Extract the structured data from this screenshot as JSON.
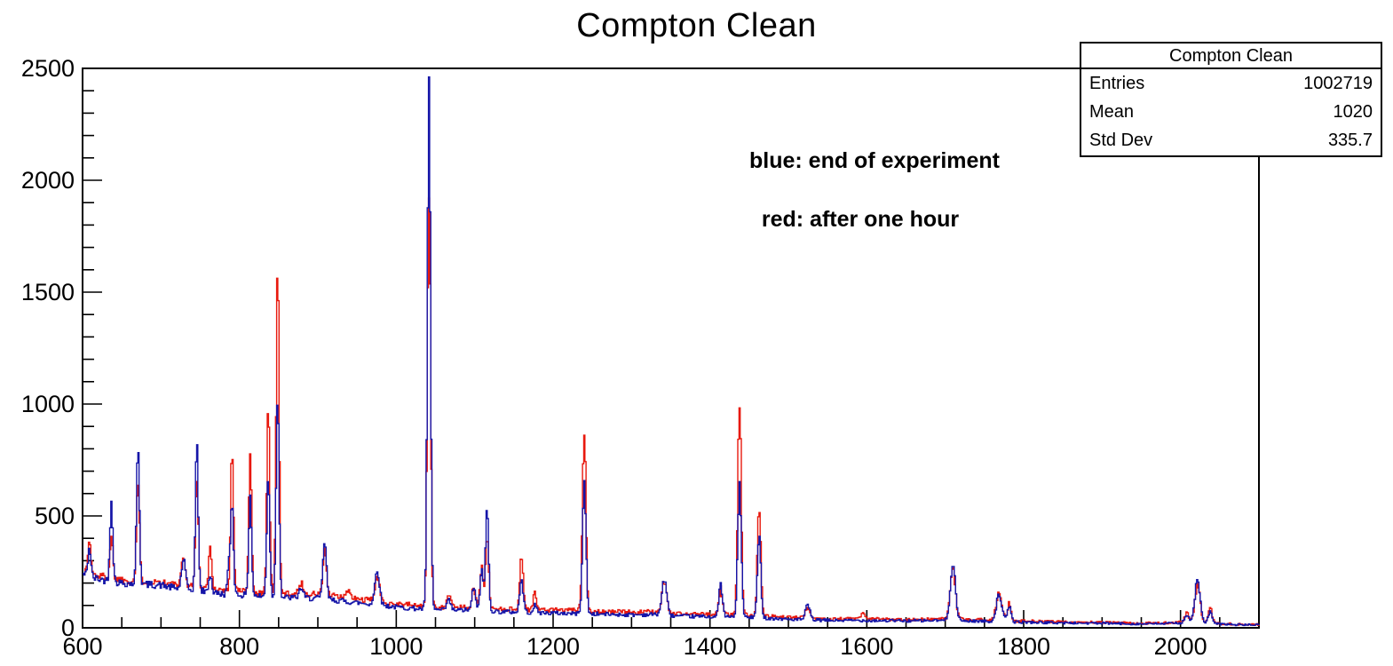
{
  "title": "Compton Clean",
  "annotations": {
    "blue": "blue: end of experiment",
    "red": "red: after one hour"
  },
  "stats_box": {
    "title": "Compton Clean",
    "rows": [
      {
        "label": "Entries",
        "value": "1002719"
      },
      {
        "label": "Mean",
        "value": "1020"
      },
      {
        "label": "Std Dev",
        "value": "335.7"
      }
    ]
  },
  "chart_data": {
    "type": "line",
    "title": "Compton Clean",
    "xlabel": "",
    "ylabel": "",
    "xlim": [
      600,
      2100
    ],
    "ylim": [
      0,
      2500
    ],
    "grid": false,
    "x_major_ticks": [
      600,
      800,
      1000,
      1200,
      1400,
      1600,
      1800,
      2000
    ],
    "x_tick_labels": [
      "600",
      "800",
      "1000",
      "1200",
      "1400",
      "1600",
      "1800",
      "2000"
    ],
    "x_minor_step": 50,
    "y_major_ticks": [
      0,
      500,
      1000,
      1500,
      2000,
      2500
    ],
    "y_tick_labels": [
      "0",
      "500",
      "1000",
      "1500",
      "2000",
      "2500"
    ],
    "y_minor_step": 100,
    "legend_note": "labels given as in-plot text: blue = end of experiment, red = after one hour",
    "bin_width": 1.5,
    "series": [
      {
        "name": "after one hour",
        "color": "#e8190e",
        "seed": 1337,
        "baseline": [
          [
            600,
            255
          ],
          [
            610,
            240
          ],
          [
            625,
            230
          ],
          [
            650,
            215
          ],
          [
            675,
            210
          ],
          [
            700,
            205
          ],
          [
            720,
            190
          ],
          [
            750,
            182
          ],
          [
            780,
            168
          ],
          [
            800,
            165
          ],
          [
            830,
            155
          ],
          [
            860,
            152
          ],
          [
            900,
            150
          ],
          [
            950,
            128
          ],
          [
            985,
            115
          ],
          [
            1000,
            108
          ],
          [
            1030,
            98
          ],
          [
            1060,
            92
          ],
          [
            1100,
            95
          ],
          [
            1130,
            85
          ],
          [
            1160,
            82
          ],
          [
            1200,
            80
          ],
          [
            1250,
            75
          ],
          [
            1300,
            70
          ],
          [
            1330,
            72
          ],
          [
            1360,
            63
          ],
          [
            1400,
            60
          ],
          [
            1440,
            58
          ],
          [
            1470,
            53
          ],
          [
            1500,
            46
          ],
          [
            1550,
            40
          ],
          [
            1600,
            40
          ],
          [
            1650,
            37
          ],
          [
            1700,
            39
          ],
          [
            1740,
            36
          ],
          [
            1790,
            31
          ],
          [
            1850,
            26
          ],
          [
            1900,
            24
          ],
          [
            1950,
            20
          ],
          [
            1990,
            23
          ],
          [
            2010,
            28
          ],
          [
            2040,
            21
          ],
          [
            2070,
            16
          ],
          [
            2100,
            15
          ]
        ],
        "peaks": [
          [
            608,
            150,
            1.8
          ],
          [
            636,
            190,
            1.8
          ],
          [
            670,
            445,
            1.8
          ],
          [
            728,
            120,
            2.5
          ],
          [
            745,
            490,
            1.8
          ],
          [
            762,
            190,
            1.8
          ],
          [
            790,
            635,
            1.8
          ],
          [
            813,
            630,
            1.8
          ],
          [
            836,
            855,
            1.8
          ],
          [
            848,
            1500,
            1.8
          ],
          [
            878,
            50,
            2.5
          ],
          [
            908,
            205,
            2.2
          ],
          [
            938,
            40,
            2
          ],
          [
            975,
            110,
            2.8
          ],
          [
            1041,
            1850,
            2.0
          ],
          [
            1066,
            55,
            2.5
          ],
          [
            1098,
            85,
            2
          ],
          [
            1108,
            175,
            2
          ],
          [
            1115,
            325,
            2
          ],
          [
            1159,
            240,
            2.2
          ],
          [
            1176,
            70,
            2.2
          ],
          [
            1239,
            810,
            2.2
          ],
          [
            1341,
            140,
            3
          ],
          [
            1413,
            115,
            2.2
          ],
          [
            1437,
            960,
            2.2
          ],
          [
            1462,
            500,
            2.2
          ],
          [
            1524,
            55,
            2.8
          ],
          [
            1594,
            25,
            2
          ],
          [
            1709,
            225,
            3.2
          ],
          [
            1768,
            130,
            3.5
          ],
          [
            1781,
            80,
            2.2
          ],
          [
            2007,
            38,
            2.5
          ],
          [
            2021,
            165,
            3.2
          ],
          [
            2037,
            72,
            2.5
          ]
        ]
      },
      {
        "name": "end of experiment",
        "color": "#1515a8",
        "seed": 42,
        "baseline": [
          [
            600,
            240
          ],
          [
            610,
            225
          ],
          [
            625,
            215
          ],
          [
            650,
            200
          ],
          [
            675,
            195
          ],
          [
            700,
            190
          ],
          [
            720,
            175
          ],
          [
            750,
            165
          ],
          [
            780,
            150
          ],
          [
            800,
            148
          ],
          [
            830,
            140
          ],
          [
            860,
            135
          ],
          [
            900,
            132
          ],
          [
            950,
            112
          ],
          [
            985,
            100
          ],
          [
            1000,
            92
          ],
          [
            1030,
            85
          ],
          [
            1060,
            78
          ],
          [
            1100,
            80
          ],
          [
            1130,
            72
          ],
          [
            1160,
            70
          ],
          [
            1200,
            66
          ],
          [
            1250,
            62
          ],
          [
            1300,
            58
          ],
          [
            1330,
            60
          ],
          [
            1360,
            52
          ],
          [
            1400,
            50
          ],
          [
            1440,
            48
          ],
          [
            1470,
            44
          ],
          [
            1500,
            38
          ],
          [
            1550,
            33
          ],
          [
            1600,
            33
          ],
          [
            1650,
            31
          ],
          [
            1700,
            33
          ],
          [
            1740,
            30
          ],
          [
            1790,
            26
          ],
          [
            1850,
            22
          ],
          [
            1900,
            20
          ],
          [
            1950,
            17
          ],
          [
            1990,
            20
          ],
          [
            2010,
            25
          ],
          [
            2040,
            18
          ],
          [
            2070,
            14
          ],
          [
            2100,
            13
          ]
        ],
        "peaks": [
          [
            608,
            130,
            1.8
          ],
          [
            636,
            370,
            1.8
          ],
          [
            670,
            630,
            1.8
          ],
          [
            728,
            130,
            2.5
          ],
          [
            745,
            650,
            1.8
          ],
          [
            762,
            80,
            1.8
          ],
          [
            786,
            120,
            2.0
          ],
          [
            790,
            390,
            1.8
          ],
          [
            813,
            445,
            1.8
          ],
          [
            836,
            545,
            1.8
          ],
          [
            848,
            920,
            1.8
          ],
          [
            878,
            45,
            2.5
          ],
          [
            908,
            260,
            2.2
          ],
          [
            975,
            160,
            2.8
          ],
          [
            1041,
            2330,
            2.0
          ],
          [
            1066,
            45,
            2.5
          ],
          [
            1098,
            105,
            2
          ],
          [
            1108,
            175,
            2
          ],
          [
            1115,
            455,
            2
          ],
          [
            1159,
            145,
            2.2
          ],
          [
            1176,
            30,
            2.2
          ],
          [
            1239,
            580,
            2.2
          ],
          [
            1341,
            160,
            3
          ],
          [
            1413,
            145,
            2.2
          ],
          [
            1437,
            600,
            2.2
          ],
          [
            1462,
            355,
            2.2
          ],
          [
            1524,
            65,
            2.8
          ],
          [
            1709,
            260,
            3.2
          ],
          [
            1768,
            120,
            3.5
          ],
          [
            1781,
            70,
            2.2
          ],
          [
            2007,
            35,
            2.5
          ],
          [
            2021,
            200,
            3.2
          ],
          [
            2037,
            50,
            2.5
          ]
        ]
      }
    ]
  }
}
